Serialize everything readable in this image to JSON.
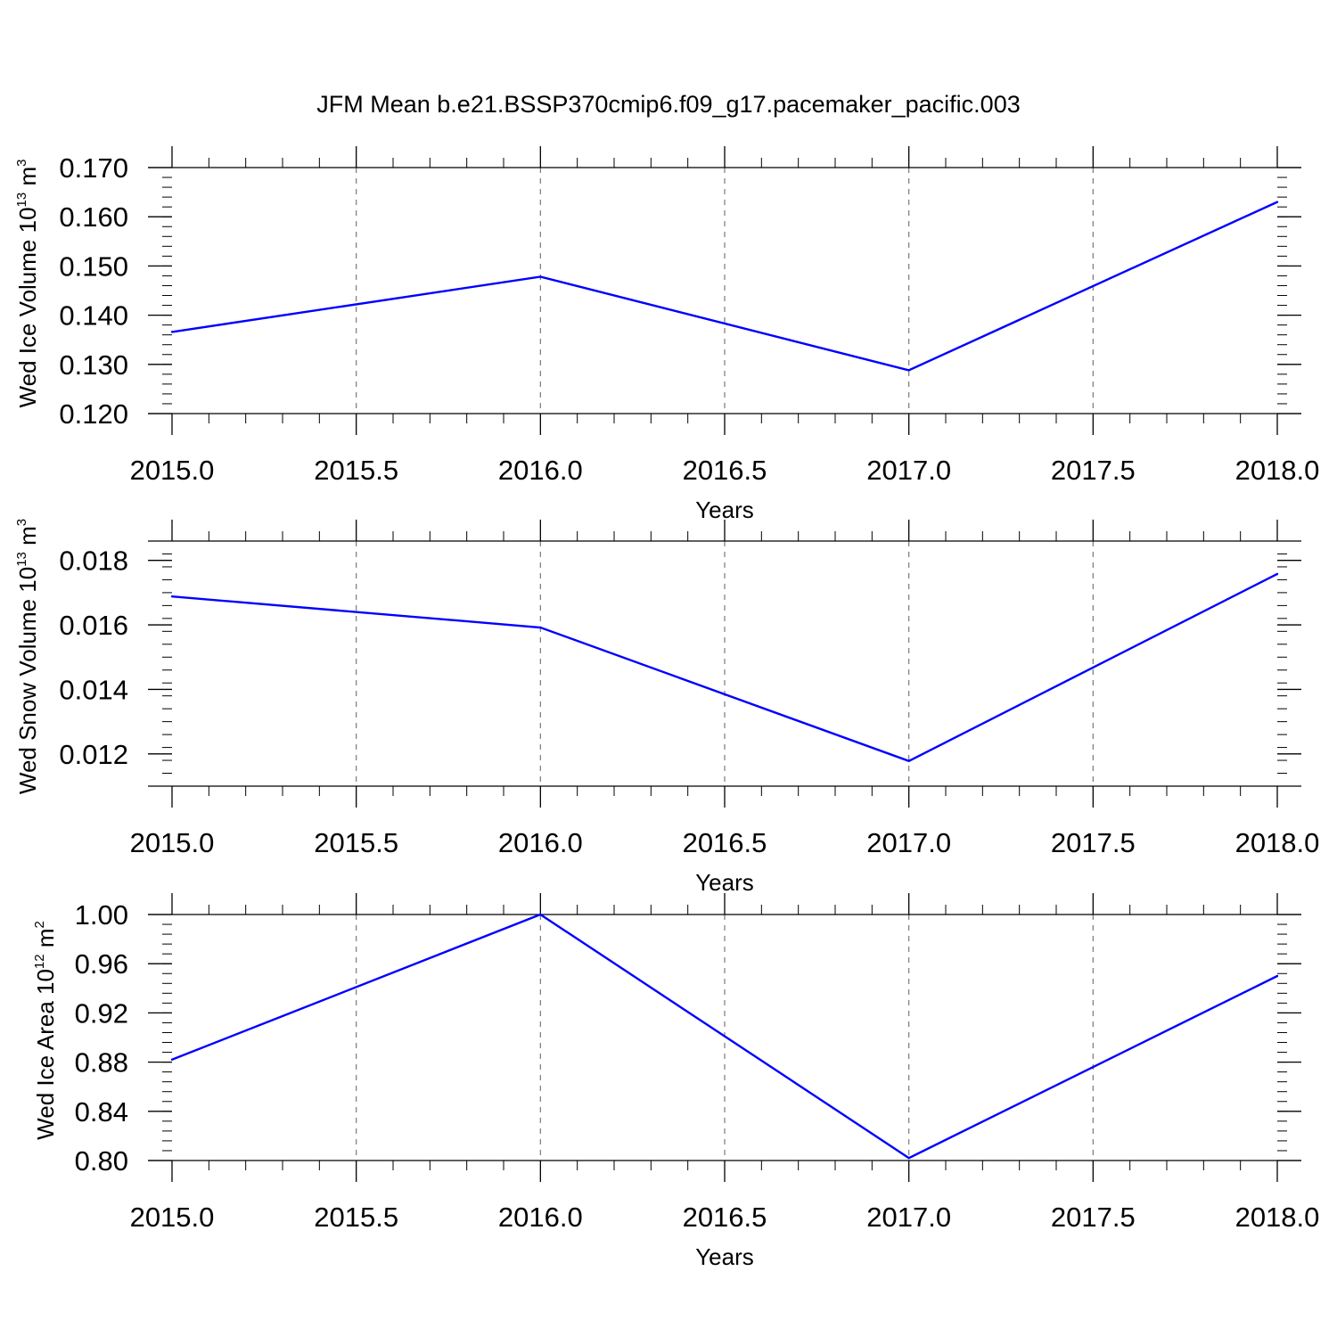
{
  "title": "JFM Mean b.e21.BSSP370cmip6.f09_g17.pacemaker_pacific.003",
  "chart_data": [
    {
      "type": "line",
      "xlabel": "Years",
      "ylabel": {
        "prefix": "Wed Ice Volume 10",
        "exp": "13",
        "unit": " m",
        "unit_exp": "3"
      },
      "xlim": [
        2015.0,
        2018.0
      ],
      "ylim": [
        0.12,
        0.17
      ],
      "x_ticks": [
        "2015.0",
        "2015.5",
        "2016.0",
        "2016.5",
        "2017.0",
        "2017.5",
        "2018.0"
      ],
      "y_ticks": [
        "0.120",
        "0.130",
        "0.140",
        "0.150",
        "0.160",
        "0.170"
      ],
      "y_tick_values": [
        0.12,
        0.13,
        0.14,
        0.15,
        0.16,
        0.17
      ],
      "y_minor_step": 0.002,
      "grid": "vertical dashed",
      "line_color": "#0000ff",
      "x": [
        2015,
        2016,
        2017,
        2018
      ],
      "y": [
        0.1366,
        0.1478,
        0.1288,
        0.163
      ]
    },
    {
      "type": "line",
      "xlabel": "Years",
      "ylabel": {
        "prefix": "Wed Snow Volume 10",
        "exp": "13",
        "unit": " m",
        "unit_exp": "3"
      },
      "xlim": [
        2015.0,
        2018.0
      ],
      "ylim": [
        0.011,
        0.0186
      ],
      "x_ticks": [
        "2015.0",
        "2015.5",
        "2016.0",
        "2016.5",
        "2017.0",
        "2017.5",
        "2018.0"
      ],
      "y_ticks": [
        "0.012",
        "0.014",
        "0.016",
        "0.018"
      ],
      "y_tick_values": [
        0.012,
        0.014,
        0.016,
        0.018
      ],
      "y_minor_step": 0.0004,
      "grid": "vertical dashed",
      "line_color": "#0000ff",
      "x": [
        2015,
        2016,
        2017,
        2018
      ],
      "y": [
        0.01688,
        0.01592,
        0.01178,
        0.01758
      ]
    },
    {
      "type": "line",
      "xlabel": "Years",
      "ylabel": {
        "prefix": "Wed Ice Area 10",
        "exp": "12",
        "unit": " m",
        "unit_exp": "2"
      },
      "xlim": [
        2015.0,
        2018.0
      ],
      "ylim": [
        0.8,
        1.0
      ],
      "x_ticks": [
        "2015.0",
        "2015.5",
        "2016.0",
        "2016.5",
        "2017.0",
        "2017.5",
        "2018.0"
      ],
      "y_ticks": [
        "0.80",
        "0.84",
        "0.88",
        "0.92",
        "0.96",
        "1.00"
      ],
      "y_tick_values": [
        0.8,
        0.84,
        0.88,
        0.92,
        0.96,
        1.0
      ],
      "y_minor_step": 0.008,
      "grid": "vertical dashed",
      "line_color": "#0000ff",
      "x": [
        2015,
        2016,
        2017,
        2018
      ],
      "y": [
        0.882,
        1.0,
        0.802,
        0.95
      ]
    }
  ]
}
